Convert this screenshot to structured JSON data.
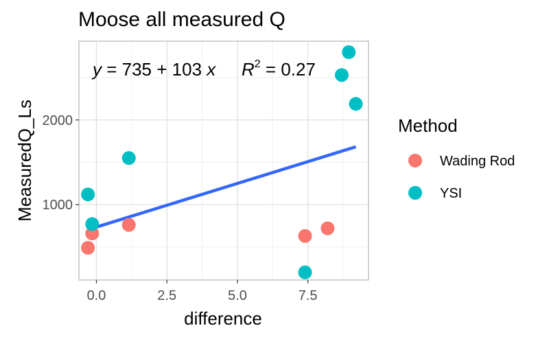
{
  "chart_data": {
    "type": "scatter",
    "title": "Moose all measured Q",
    "xlabel": "difference",
    "ylabel": "MeasuredQ_Ls",
    "xlim": [
      -0.62,
      9.65
    ],
    "ylim": [
      110,
      2930
    ],
    "x_ticks": [
      0.0,
      2.5,
      5.0,
      7.5
    ],
    "x_tick_labels": [
      "0.0",
      "2.5",
      "5.0",
      "7.5"
    ],
    "y_ticks": [
      1000,
      2000
    ],
    "y_tick_labels": [
      "1000",
      "2000"
    ],
    "grid": true,
    "legend": {
      "title": "Method",
      "position": "right",
      "entries": [
        {
          "label": "Wading Rod",
          "color": "#F8766D"
        },
        {
          "label": "YSI",
          "color": "#00BFC4"
        }
      ]
    },
    "series": [
      {
        "name": "Wading Rod",
        "color": "#F8766D",
        "points": [
          {
            "x": -0.3,
            "y": 490
          },
          {
            "x": -0.15,
            "y": 660
          },
          {
            "x": 1.15,
            "y": 760
          },
          {
            "x": 7.4,
            "y": 630
          },
          {
            "x": 8.2,
            "y": 720
          }
        ]
      },
      {
        "name": "YSI",
        "color": "#00BFC4",
        "points": [
          {
            "x": -0.3,
            "y": 1120
          },
          {
            "x": -0.15,
            "y": 770
          },
          {
            "x": 1.15,
            "y": 1550
          },
          {
            "x": 7.4,
            "y": 200
          },
          {
            "x": 8.7,
            "y": 2530
          },
          {
            "x": 8.95,
            "y": 2800
          },
          {
            "x": 9.2,
            "y": 2190
          }
        ]
      }
    ],
    "regression": {
      "intercept": 735,
      "slope": 103,
      "x_range": [
        -0.3,
        9.2
      ],
      "color": "#3366FF",
      "equation": {
        "y_var": "y",
        "eq_sign": " = ",
        "intercept_text": "735",
        "plus": " + ",
        "slope_text": "103",
        "x_var": " x",
        "r_var": "R",
        "r_sup": "2",
        "r_eq": " = 0.27"
      }
    }
  }
}
